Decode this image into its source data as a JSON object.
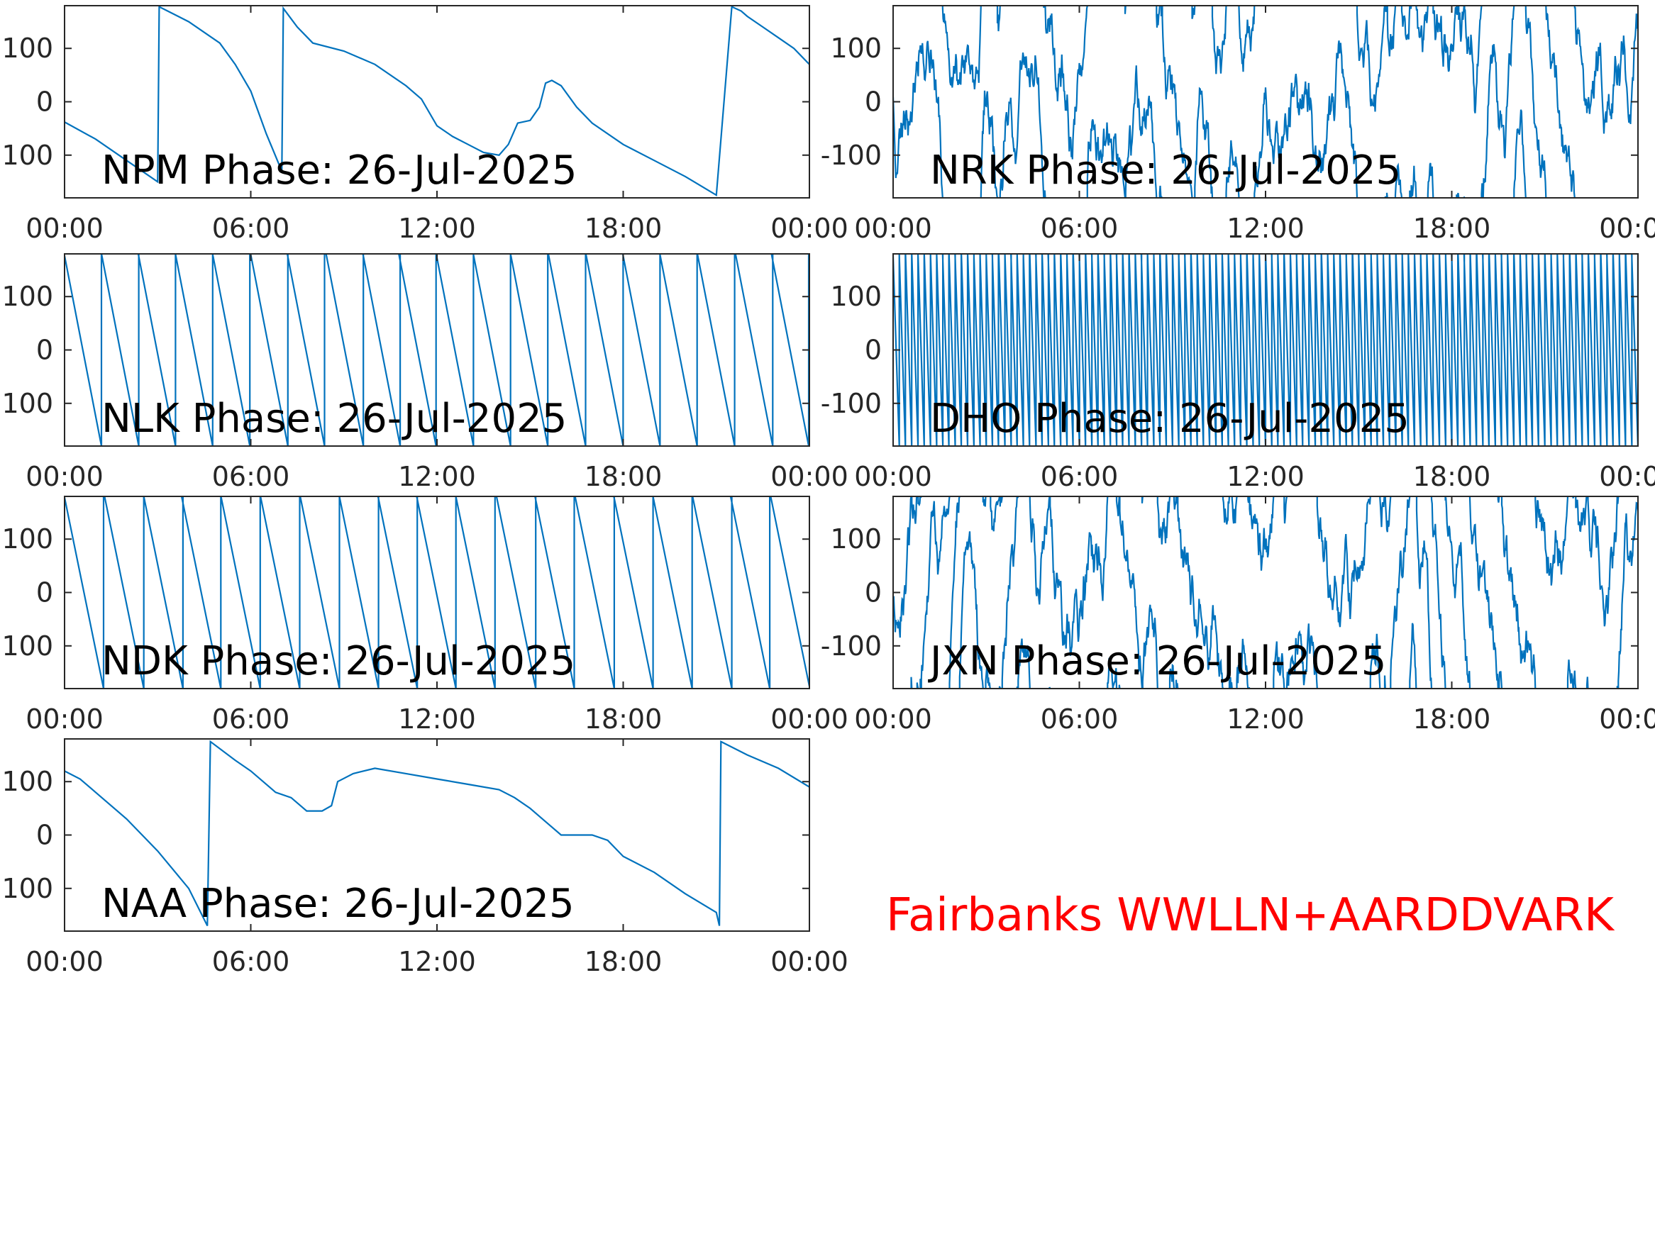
{
  "figure": {
    "footer_label": "Fairbanks WWLLN+AARDDVARK",
    "footer_color": "#ff0000",
    "line_color": "#0072bd"
  },
  "chart_data": [
    {
      "type": "line",
      "title": "NPM Phase: 26-Jul-2025",
      "x_ticks": [
        "00:00",
        "06:00",
        "12:00",
        "18:00",
        "00:00"
      ],
      "y_ticks": [
        "100",
        "0",
        "100"
      ],
      "xlim_hours": [
        0,
        24
      ],
      "ylim": [
        -180,
        180
      ],
      "series": [
        {
          "style": "smooth",
          "x_hours": [
            0,
            1,
            2,
            3,
            3.05,
            4,
            5,
            5.5,
            6,
            6.5,
            7,
            7.05,
            7.5,
            8,
            9,
            10,
            11,
            11.5,
            12,
            12.5,
            13,
            13.5,
            14,
            14.3,
            14.6,
            15,
            15.3,
            15.5,
            15.7,
            16,
            16.5,
            17,
            18,
            19,
            20,
            21,
            21.5,
            21.8,
            22,
            22.5,
            23,
            23.5,
            24
          ],
          "values": [
            -38,
            -70,
            -110,
            -150,
            178,
            150,
            110,
            70,
            20,
            -60,
            -130,
            175,
            140,
            110,
            95,
            70,
            30,
            5,
            -45,
            -65,
            -80,
            -95,
            -100,
            -80,
            -40,
            -35,
            -10,
            35,
            40,
            30,
            -10,
            -40,
            -80,
            -110,
            -140,
            -175,
            178,
            170,
            160,
            140,
            120,
            100,
            70
          ]
        }
      ]
    },
    {
      "type": "line",
      "title": "NRK Phase: 26-Jul-2025",
      "x_ticks": [
        "00:00",
        "06:00",
        "12:00",
        "18:00",
        "00:00"
      ],
      "y_ticks": [
        "100",
        "0",
        "-100"
      ],
      "xlim_hours": [
        0,
        24
      ],
      "ylim": [
        -180,
        180
      ],
      "series": [
        {
          "style": "noisy-wrapped",
          "x_hours": [
            0,
            24
          ],
          "values": [
            -180,
            180
          ]
        }
      ]
    },
    {
      "type": "line",
      "title": "NLK Phase: 26-Jul-2025",
      "x_ticks": [
        "00:00",
        "06:00",
        "12:00",
        "18:00",
        "00:00"
      ],
      "y_ticks": [
        "100",
        "0",
        "100"
      ],
      "xlim_hours": [
        0,
        24
      ],
      "ylim": [
        -180,
        180
      ],
      "series": [
        {
          "style": "sawtooth",
          "x_hours": [
            0,
            24
          ],
          "cycles": 20,
          "values": [
            -180,
            180
          ]
        }
      ]
    },
    {
      "type": "line",
      "title": "DHO Phase: 26-Jul-2025",
      "x_ticks": [
        "00:00",
        "06:00",
        "12:00",
        "18:00",
        "00:00"
      ],
      "y_ticks": [
        "100",
        "0",
        "-100"
      ],
      "xlim_hours": [
        0,
        24
      ],
      "ylim": [
        -180,
        180
      ],
      "series": [
        {
          "style": "sawtooth",
          "x_hours": [
            0,
            24
          ],
          "cycles": 120,
          "values": [
            -180,
            180
          ]
        }
      ]
    },
    {
      "type": "line",
      "title": "NDK Phase: 26-Jul-2025",
      "x_ticks": [
        "00:00",
        "06:00",
        "12:00",
        "18:00",
        "00:00"
      ],
      "y_ticks": [
        "100",
        "0",
        "100"
      ],
      "xlim_hours": [
        0,
        24
      ],
      "ylim": [
        -180,
        180
      ],
      "series": [
        {
          "style": "sawtooth",
          "x_hours": [
            0,
            24
          ],
          "cycles": 19,
          "values": [
            -180,
            180
          ]
        }
      ]
    },
    {
      "type": "line",
      "title": "JXN Phase: 26-Jul-2025",
      "x_ticks": [
        "00:00",
        "06:00",
        "12:00",
        "18:00",
        "00:00"
      ],
      "y_ticks": [
        "100",
        "0",
        "-100"
      ],
      "xlim_hours": [
        0,
        24
      ],
      "ylim": [
        -180,
        180
      ],
      "series": [
        {
          "style": "noisy-wrapped",
          "x_hours": [
            0,
            24
          ],
          "values": [
            -180,
            180
          ]
        }
      ]
    },
    {
      "type": "line",
      "title": "NAA Phase: 26-Jul-2025",
      "x_ticks": [
        "00:00",
        "06:00",
        "12:00",
        "18:00",
        "00:00"
      ],
      "y_ticks": [
        "100",
        "0",
        "100"
      ],
      "xlim_hours": [
        0,
        24
      ],
      "ylim": [
        -180,
        180
      ],
      "series": [
        {
          "style": "smooth",
          "x_hours": [
            0,
            0.5,
            1,
            2,
            3,
            4,
            4.6,
            4.7,
            5.5,
            6,
            6.8,
            7.3,
            7.8,
            8.3,
            8.6,
            8.8,
            9.3,
            10,
            11,
            12,
            13,
            14,
            14.5,
            15,
            15.5,
            16,
            16.5,
            17,
            17.5,
            18,
            19,
            20,
            21,
            21.1,
            21.15,
            22,
            23,
            24
          ],
          "values": [
            120,
            105,
            80,
            30,
            -30,
            -100,
            -170,
            175,
            140,
            120,
            80,
            70,
            45,
            45,
            55,
            100,
            115,
            125,
            115,
            105,
            95,
            85,
            70,
            50,
            25,
            0,
            0,
            0,
            -10,
            -40,
            -70,
            -110,
            -145,
            -170,
            175,
            150,
            125,
            90
          ]
        }
      ]
    }
  ]
}
